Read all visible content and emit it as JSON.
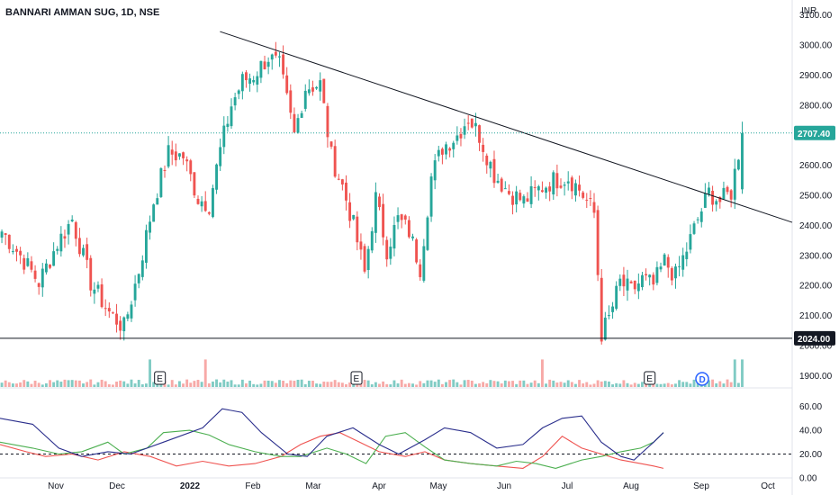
{
  "chart_data": {
    "type": "candlestick",
    "title": "BANNARI AMMAN SUG, 1D, NSE",
    "currency": "INR",
    "colors": {
      "up": "#26a69a",
      "down": "#ef5350",
      "up_volume": "#80cbc4",
      "down_volume": "#f7a9a7",
      "trendline": "#131722",
      "last_price_line": "#26a69a",
      "badge_last": "#26a69a",
      "badge_level": "#131722",
      "adx_line": "#2a2e8c",
      "plus_di": "#4caf50",
      "minus_di": "#ef5350",
      "dividend": "#2962ff"
    },
    "price_axis": {
      "ylim": [
        1862,
        3150
      ],
      "ticks": [
        "3100.00",
        "3000.00",
        "2900.00",
        "2800.00",
        "2700.00",
        "2600.00",
        "2500.00",
        "2400.00",
        "2300.00",
        "2200.00",
        "2100.00",
        "2000.00",
        "1900.00"
      ],
      "last_price": "2707.40",
      "horizontal_level": "2024.00"
    },
    "time_axis": {
      "labels": [
        "Nov",
        "Dec",
        "2022",
        "Feb",
        "Mar",
        "Apr",
        "May",
        "Jun",
        "Jul",
        "Aug",
        "Sep",
        "Oct"
      ]
    },
    "trendline": {
      "start_index": 3,
      "start_value": 3045,
      "end_value": 2410,
      "end_extends_past_index": 215
    },
    "anchors": [
      [
        0,
        2380
      ],
      [
        5,
        2300
      ],
      [
        10,
        2210
      ],
      [
        15,
        2340
      ],
      [
        19,
        2420
      ],
      [
        24,
        2210
      ],
      [
        29,
        2110
      ],
      [
        33,
        2060
      ],
      [
        37,
        2250
      ],
      [
        41,
        2480
      ],
      [
        45,
        2640
      ],
      [
        49,
        2630
      ],
      [
        53,
        2490
      ],
      [
        56,
        2470
      ],
      [
        59,
        2650
      ],
      [
        62,
        2800
      ],
      [
        65,
        2880
      ],
      [
        68,
        2900
      ],
      [
        72,
        2960
      ],
      [
        75,
        2930
      ],
      [
        79,
        2700
      ],
      [
        82,
        2860
      ],
      [
        86,
        2870
      ],
      [
        89,
        2630
      ],
      [
        92,
        2530
      ],
      [
        95,
        2400
      ],
      [
        98,
        2240
      ],
      [
        101,
        2490
      ],
      [
        104,
        2320
      ],
      [
        107,
        2420
      ],
      [
        110,
        2380
      ],
      [
        113,
        2260
      ],
      [
        116,
        2560
      ],
      [
        119,
        2660
      ],
      [
        123,
        2700
      ],
      [
        126,
        2760
      ],
      [
        129,
        2700
      ],
      [
        133,
        2570
      ],
      [
        137,
        2510
      ],
      [
        141,
        2480
      ],
      [
        145,
        2520
      ],
      [
        149,
        2550
      ],
      [
        153,
        2560
      ],
      [
        156,
        2520
      ],
      [
        160,
        2440
      ],
      [
        162,
        2040
      ],
      [
        164,
        2090
      ],
      [
        167,
        2210
      ],
      [
        170,
        2180
      ],
      [
        173,
        2220
      ],
      [
        176,
        2200
      ],
      [
        179,
        2280
      ],
      [
        182,
        2230
      ],
      [
        185,
        2320
      ],
      [
        188,
        2420
      ],
      [
        191,
        2510
      ],
      [
        194,
        2480
      ],
      [
        197,
        2510
      ],
      [
        200,
        2707
      ]
    ],
    "indicator_panel": {
      "ylim": [
        0,
        68
      ],
      "ticks": [
        "60.00",
        "40.00",
        "20.00",
        "0.00"
      ],
      "dashed_level": 20,
      "adx": [
        [
          0,
          50
        ],
        [
          10,
          45
        ],
        [
          18,
          25
        ],
        [
          25,
          18
        ],
        [
          33,
          22
        ],
        [
          40,
          20
        ],
        [
          50,
          30
        ],
        [
          62,
          42
        ],
        [
          68,
          58
        ],
        [
          74,
          55
        ],
        [
          80,
          38
        ],
        [
          88,
          20
        ],
        [
          94,
          18
        ],
        [
          100,
          35
        ],
        [
          108,
          42
        ],
        [
          116,
          28
        ],
        [
          122,
          20
        ],
        [
          130,
          32
        ],
        [
          136,
          42
        ],
        [
          144,
          38
        ],
        [
          152,
          25
        ],
        [
          160,
          28
        ],
        [
          166,
          42
        ],
        [
          172,
          50
        ],
        [
          178,
          52
        ],
        [
          184,
          30
        ],
        [
          190,
          18
        ],
        [
          194,
          15
        ],
        [
          198,
          25
        ],
        [
          200,
          30
        ],
        [
          203,
          38
        ]
      ],
      "plus_di": [
        [
          0,
          30
        ],
        [
          10,
          25
        ],
        [
          18,
          20
        ],
        [
          25,
          22
        ],
        [
          33,
          30
        ],
        [
          38,
          20
        ],
        [
          45,
          25
        ],
        [
          50,
          38
        ],
        [
          58,
          40
        ],
        [
          64,
          36
        ],
        [
          70,
          28
        ],
        [
          78,
          22
        ],
        [
          86,
          18
        ],
        [
          92,
          18
        ],
        [
          100,
          25
        ],
        [
          106,
          20
        ],
        [
          112,
          12
        ],
        [
          118,
          35
        ],
        [
          124,
          38
        ],
        [
          130,
          26
        ],
        [
          136,
          15
        ],
        [
          144,
          12
        ],
        [
          152,
          10
        ],
        [
          158,
          14
        ],
        [
          164,
          12
        ],
        [
          170,
          8
        ],
        [
          178,
          15
        ],
        [
          184,
          18
        ],
        [
          190,
          22
        ],
        [
          196,
          25
        ],
        [
          200,
          30
        ],
        [
          203,
          38
        ]
      ],
      "minus_di": [
        [
          0,
          28
        ],
        [
          8,
          22
        ],
        [
          14,
          18
        ],
        [
          22,
          20
        ],
        [
          30,
          15
        ],
        [
          38,
          22
        ],
        [
          46,
          18
        ],
        [
          54,
          10
        ],
        [
          62,
          14
        ],
        [
          70,
          10
        ],
        [
          78,
          12
        ],
        [
          86,
          18
        ],
        [
          92,
          28
        ],
        [
          98,
          35
        ],
        [
          104,
          38
        ],
        [
          110,
          30
        ],
        [
          116,
          22
        ],
        [
          124,
          18
        ],
        [
          130,
          22
        ],
        [
          136,
          15
        ],
        [
          144,
          12
        ],
        [
          152,
          10
        ],
        [
          160,
          8
        ],
        [
          166,
          18
        ],
        [
          172,
          35
        ],
        [
          178,
          25
        ],
        [
          184,
          20
        ],
        [
          190,
          15
        ],
        [
          196,
          12
        ],
        [
          200,
          10
        ],
        [
          203,
          8
        ]
      ]
    },
    "earnings_markers": [
      {
        "label": "E",
        "index": 34
      },
      {
        "label": "E",
        "index": 93
      },
      {
        "label": "E",
        "index": 181
      }
    ],
    "dividend_marker": {
      "label": "D",
      "index": 215
    }
  }
}
